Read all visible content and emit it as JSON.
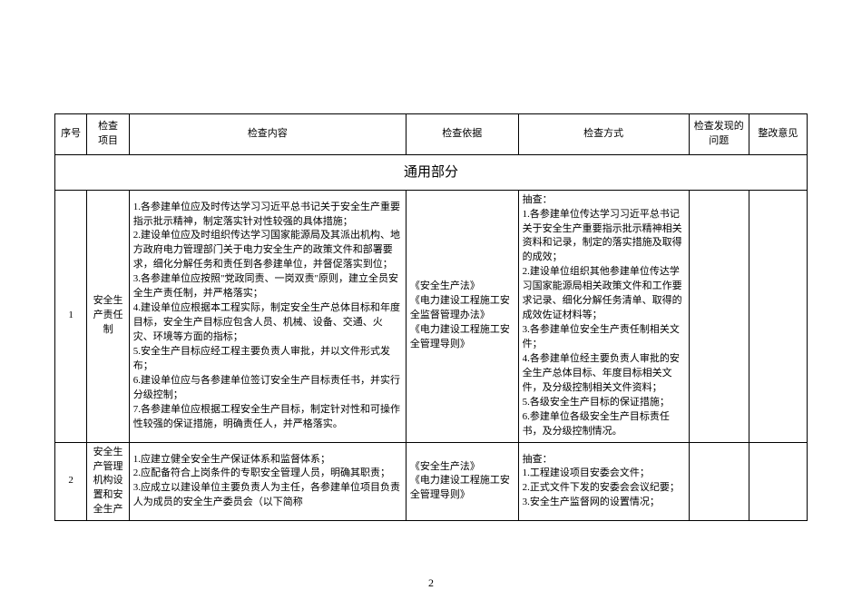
{
  "columns": {
    "seq": "序号",
    "item": "检查\n项目",
    "content": "检查内容",
    "basis": "检查依据",
    "method": "检查方式",
    "problem": "检查发现的\n问题",
    "suggest": "整改意见"
  },
  "section_title": "通用部分",
  "rows": [
    {
      "seq": "1",
      "item": "安全生\n产责任\n制",
      "content": "1.各参建单位应及时传达学习习近平总书记关于安全生产重要指示批示精神，制定落实针对性较强的具体措施；\n2.建设单位应及时组织传达学习国家能源局及其派出机构、地方政府电力管理部门关于电力安全生产的政策文件和部署要求，细化分解任务和责任到各参建单位，并督促落实到位；\n3.各参建单位应按照\"党政同责、一岗双责\"原则，建立全员安全生产责任制，并严格落实；\n4.建设单位应根据本工程实际，制定安全生产总体目标和年度目标，安全生产目标应包含人员、机械、设备、交通、火灾、环境等方面的指标；\n5.安全生产目标应经工程主要负责人审批，并以文件形式发布；\n6.建设单位应与各参建单位签订安全生产目标责任书，并实行分级控制；\n7.各参建单位应根据工程安全生产目标，制定针对性和可操作性较强的保证措施，明确责任人，并严格落实。",
      "basis": "《安全生产法》\n《电力建设工程施工安全监督管理办法》\n《电力建设工程施工安全管理导则》",
      "method": "抽查：\n1.各参建单位传达学习习近平总书记关于安全生产重要指示批示精神相关资料和记录，制定的落实措施及取得的成效；\n2.建设单位组织其他参建单位传达学习国家能源局相关政策文件和工作要求记录、细化分解任务清单、取得的成效佐证材料等；\n3.各参建单位安全生产责任制相关文件；\n4.各参建单位经主要负责人审批的安全生产总体目标、年度目标相关文件，及分级控制相关文件资料；\n5.各级安全生产目标的保证措施；\n6.参建单位各级安全生产目标责任书，及分级控制情况。",
      "problem": "",
      "suggest": ""
    },
    {
      "seq": "2",
      "item": "安全生\n产管理\n机构设\n置和安\n全生产",
      "content": "1.应建立健全安全生产保证体系和监督体系；\n2.应配备符合上岗条件的专职安全管理人员，明确其职责；\n3.应成立以建设单位主要负责人为主任，各参建单位项目负责人为成员的安全生产委员会（以下简称",
      "basis": "《安全生产法》\n《电力建设工程施工安全管理导则》",
      "method": "抽查：\n1.工程建设项目安委会文件；\n2.正式文件下发的安委会会议纪要；\n3.安全生产监督网的设置情况；",
      "problem": "",
      "suggest": ""
    }
  ],
  "page_number": "2"
}
